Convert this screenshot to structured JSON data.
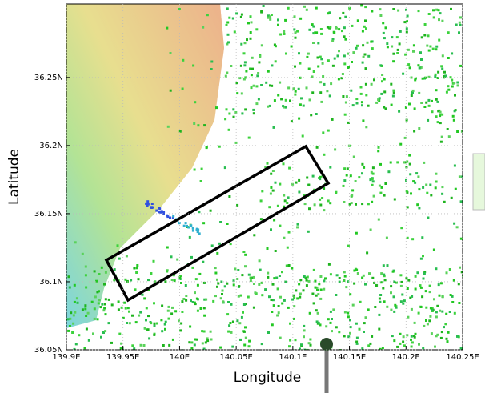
{
  "chart_data": {
    "type": "map",
    "xlabel": "Longitude",
    "ylabel": "Latitude",
    "xlim": [
      139.9,
      140.25
    ],
    "ylim": [
      36.05,
      36.304
    ],
    "xticks": [
      {
        "value": 139.9,
        "label": "139.9E"
      },
      {
        "value": 139.95,
        "label": "139.95E"
      },
      {
        "value": 140,
        "label": "140E"
      },
      {
        "value": 140.05,
        "label": "140.05E"
      },
      {
        "value": 140.1,
        "label": "140.1E"
      },
      {
        "value": 140.15,
        "label": "140.15E"
      },
      {
        "value": 140.2,
        "label": "140.2E"
      },
      {
        "value": 140.25,
        "label": "140.25E"
      }
    ],
    "yticks": [
      {
        "value": 36.05,
        "label": "36.05N"
      },
      {
        "value": 36.1,
        "label": "36.1N"
      },
      {
        "value": 36.15,
        "label": "36.15N"
      },
      {
        "value": 36.2,
        "label": "36.2N"
      },
      {
        "value": 36.25,
        "label": "36.25N"
      }
    ],
    "grid": true
  }
}
